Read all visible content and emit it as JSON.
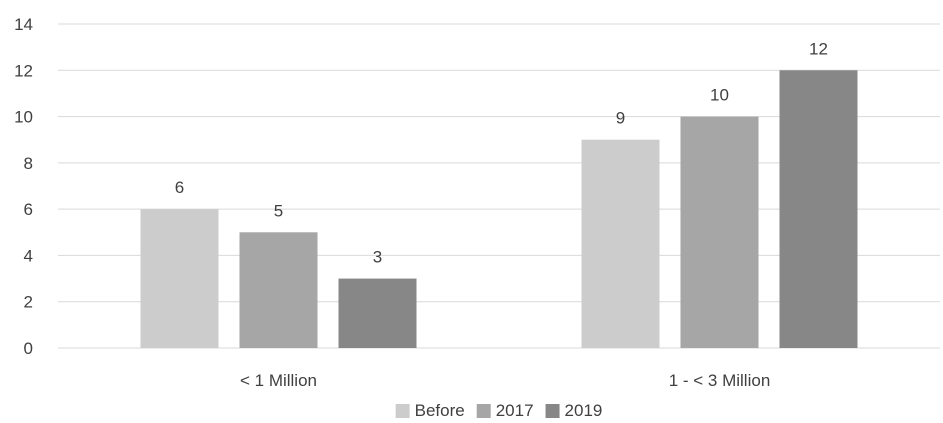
{
  "chart_data": {
    "type": "bar",
    "title": "",
    "xlabel": "",
    "ylabel": "",
    "categories": [
      "< 1 Million",
      "1 - < 3 Million"
    ],
    "series": [
      {
        "name": "Before",
        "values": [
          6,
          9
        ],
        "color": "#cccccc"
      },
      {
        "name": "2017",
        "values": [
          5,
          10
        ],
        "color": "#a6a6a6"
      },
      {
        "name": "2019",
        "values": [
          3,
          12
        ],
        "color": "#878787"
      }
    ],
    "ylim": [
      0,
      14
    ],
    "yticks": [
      "0",
      "2",
      "4",
      "6",
      "8",
      "10",
      "12",
      "14"
    ],
    "grid": true,
    "data_labels": true,
    "legend": "bottom-center"
  }
}
